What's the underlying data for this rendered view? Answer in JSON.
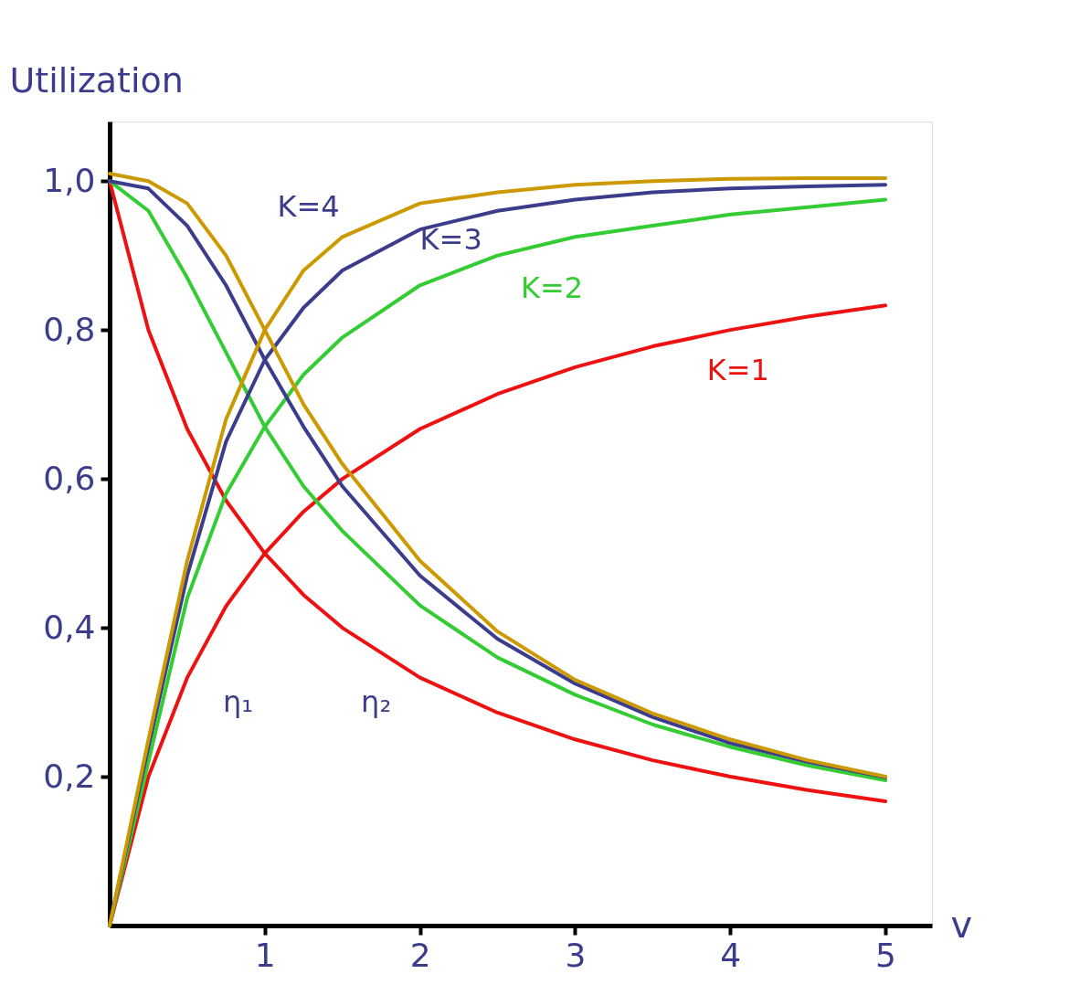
{
  "chart_data": {
    "type": "line",
    "xlabel": "v",
    "ylabel": "Utilization",
    "x": [
      0,
      0.25,
      0.5,
      0.75,
      1,
      1.25,
      1.5,
      2,
      2.5,
      3,
      3.5,
      4,
      4.5,
      5
    ],
    "series": [
      {
        "color": "#ee1111",
        "values": [
          1,
          0.8,
          0.667,
          0.571,
          0.5,
          0.444,
          0.4,
          0.333,
          0.286,
          0.25,
          0.222,
          0.2,
          0.182,
          0.167
        ]
      },
      {
        "color": "#ee1111",
        "values": [
          0,
          0.2,
          0.333,
          0.429,
          0.5,
          0.556,
          0.6,
          0.667,
          0.714,
          0.75,
          0.778,
          0.8,
          0.818,
          0.833
        ]
      },
      {
        "color": "#33cc33",
        "values": [
          1,
          0.96,
          0.87,
          0.77,
          0.67,
          0.59,
          0.53,
          0.43,
          0.36,
          0.31,
          0.27,
          0.24,
          0.215,
          0.195
        ]
      },
      {
        "color": "#33cc33",
        "values": [
          0,
          0.22,
          0.44,
          0.58,
          0.67,
          0.74,
          0.79,
          0.86,
          0.9,
          0.925,
          0.94,
          0.955,
          0.965,
          0.975
        ]
      },
      {
        "color": "#3c3c8c",
        "values": [
          1,
          0.99,
          0.94,
          0.86,
          0.76,
          0.67,
          0.59,
          0.47,
          0.385,
          0.325,
          0.28,
          0.245,
          0.22,
          0.199
        ]
      },
      {
        "color": "#3c3c8c",
        "values": [
          0,
          0.24,
          0.47,
          0.65,
          0.76,
          0.83,
          0.88,
          0.935,
          0.96,
          0.975,
          0.985,
          0.99,
          0.993,
          0.995
        ]
      },
      {
        "color": "#cc9900",
        "values": [
          1.01,
          1.0,
          0.97,
          0.9,
          0.8,
          0.7,
          0.62,
          0.49,
          0.395,
          0.33,
          0.285,
          0.25,
          0.222,
          0.2
        ]
      },
      {
        "color": "#cc9900",
        "values": [
          0,
          0.25,
          0.49,
          0.68,
          0.8,
          0.88,
          0.925,
          0.97,
          0.985,
          0.995,
          1.0,
          1.003,
          1.004,
          1.004
        ]
      }
    ],
    "xlim": [
      0,
      5.3
    ],
    "ylim": [
      0,
      1.08
    ],
    "xticks": [
      1,
      2,
      3,
      4,
      5
    ],
    "yticks": [
      {
        "value": 0.2,
        "label": "0,2"
      },
      {
        "value": 0.4,
        "label": "0,4"
      },
      {
        "value": 0.6,
        "label": "0,6"
      },
      {
        "value": 0.8,
        "label": "0,8"
      },
      {
        "value": 1.0,
        "label": "1,0"
      }
    ],
    "grid": false,
    "marker": "none",
    "line_style": "solid",
    "annotations": [
      "K=4",
      "K=3",
      "K=2",
      "K=1",
      "η₁",
      "η₂"
    ]
  }
}
